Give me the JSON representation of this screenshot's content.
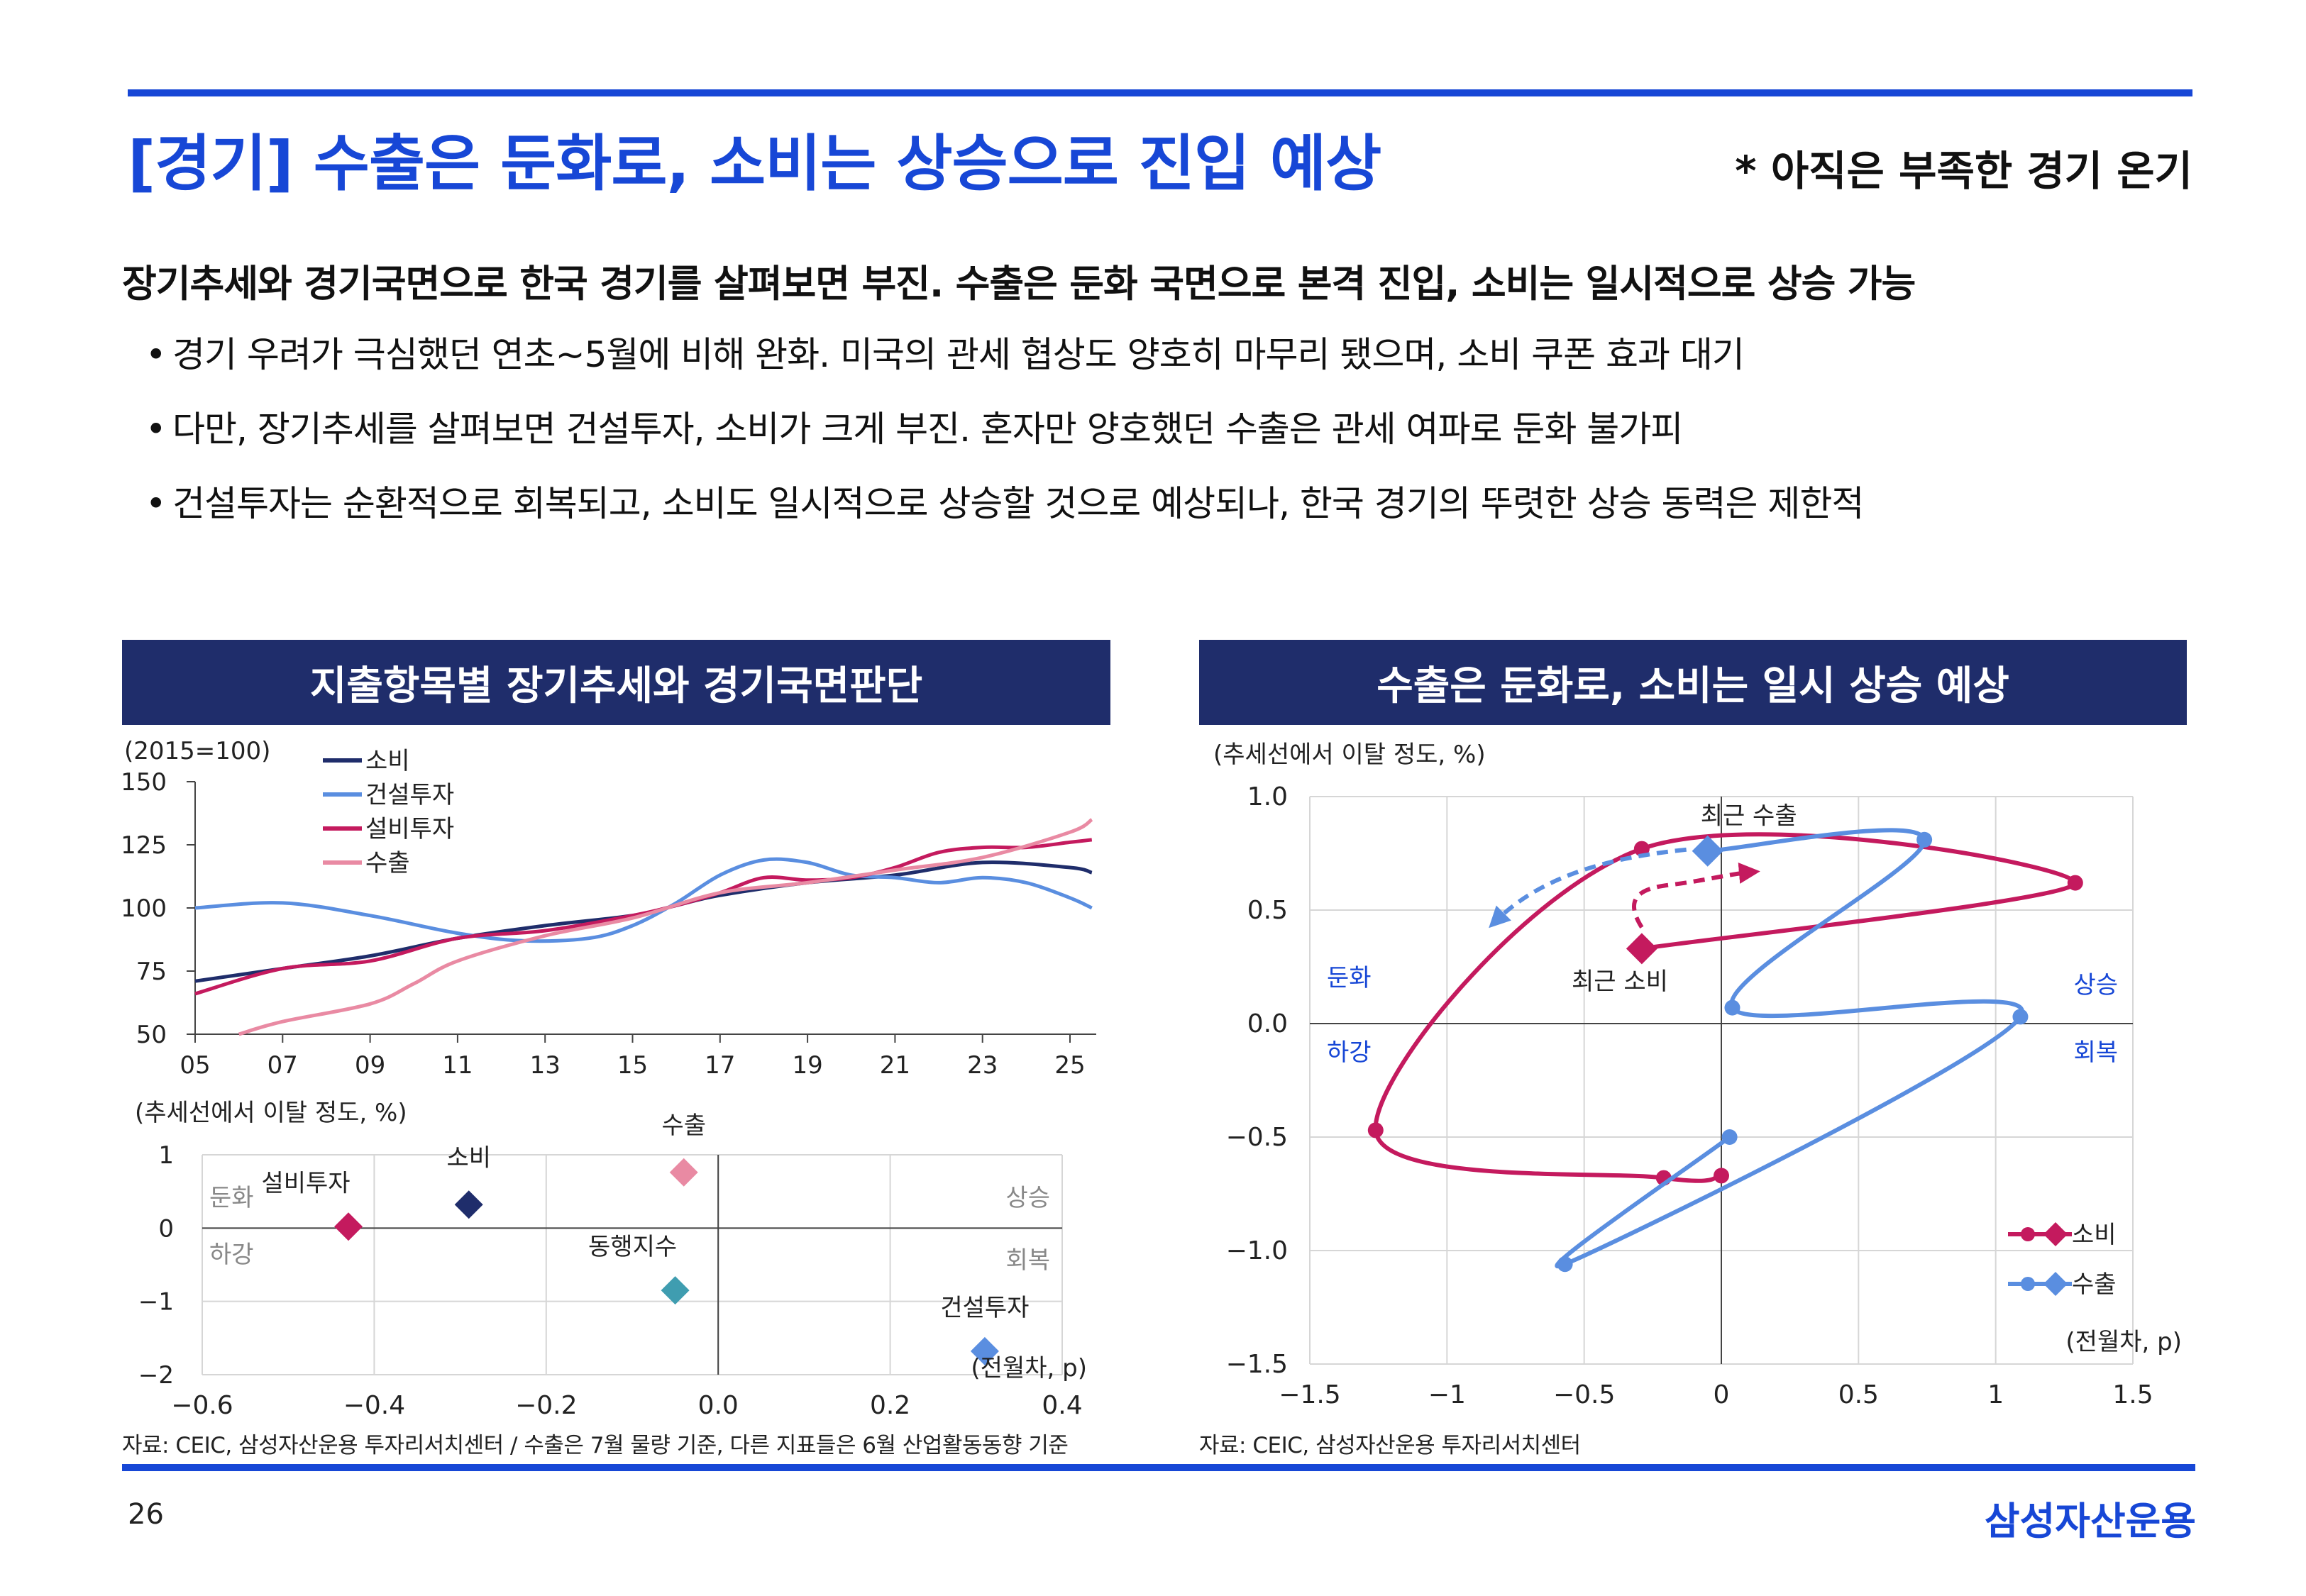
{
  "header": {
    "title": "[경기] 수출은 둔화로, 소비는 상승으로 진입 예상",
    "note": "* 아직은 부족한 경기 온기"
  },
  "lead": "장기추세와 경기국면으로 한국 경기를 살펴보면 부진. 수출은 둔화 국면으로 본격 진입, 소비는 일시적으로 상승 가능",
  "bullets": [
    "경기 우려가 극심했던 연초~5월에 비해 완화. 미국의 관세 협상도 양호히 마무리 됐으며, 소비 쿠폰 효과 대기",
    "다만, 장기추세를 살펴보면 건설투자, 소비가 크게 부진. 혼자만 양호했던 수출은 관세 여파로 둔화 불가피",
    "건설투자는 순환적으로 회복되고, 소비도 일시적으로 상승할 것으로 예상되나, 한국 경기의 뚜렷한 상승 동력은 제한적"
  ],
  "bullet_marker": "•",
  "left_panel": {
    "heading": "지출항목별 장기추세와 경기국면판단",
    "source": "자료: CEIC, 삼성자산운용 투자리서치센터 / 수출은 7월 물량 기준, 다른 지표들은 6월 산업활동동향 기준"
  },
  "right_panel": {
    "heading": "수출은 둔화로, 소비는 일시 상승 예상",
    "source": "자료: CEIC, 삼성자산운용 투자리서치센터"
  },
  "footer": {
    "page": "26",
    "brand": "삼성자산운용"
  },
  "chart_data": [
    {
      "id": "trend",
      "type": "line",
      "title": "",
      "ylabel": "(2015=100)",
      "xlim": [
        2005,
        2025.6
      ],
      "ylim": [
        50,
        150
      ],
      "xticks": [
        2005,
        2007,
        2009,
        2011,
        2013,
        2015,
        2017,
        2019,
        2021,
        2023,
        2025
      ],
      "xtick_labels": [
        "05",
        "07",
        "09",
        "11",
        "13",
        "15",
        "17",
        "19",
        "21",
        "23",
        "25"
      ],
      "yticks": [
        50,
        75,
        100,
        125,
        150
      ],
      "legend_position": "top-left",
      "series": [
        {
          "name": "소비",
          "color": "#1f2d6b",
          "x": [
            2005,
            2007,
            2009,
            2011,
            2013,
            2015,
            2016,
            2017,
            2019,
            2021,
            2023,
            2025,
            2025.5
          ],
          "y": [
            71,
            76,
            81,
            88,
            93,
            97,
            101,
            105,
            110,
            113,
            118,
            116,
            114
          ]
        },
        {
          "name": "건설투자",
          "color": "#5a8ee0",
          "x": [
            2005,
            2007,
            2009,
            2011,
            2012.5,
            2014,
            2015,
            2016,
            2017,
            2018,
            2019,
            2020,
            2021,
            2022,
            2023,
            2024,
            2025,
            2025.5
          ],
          "y": [
            100,
            102,
            97,
            90,
            87,
            88,
            93,
            102,
            113,
            119,
            118,
            113,
            112,
            110,
            112,
            110,
            104,
            100
          ]
        },
        {
          "name": "설비투자",
          "color": "#c41a5e",
          "x": [
            2005,
            2007,
            2009,
            2011,
            2013,
            2015,
            2016,
            2017,
            2018,
            2019,
            2020,
            2021,
            2022,
            2023,
            2024,
            2025,
            2025.5
          ],
          "y": [
            66,
            76,
            79,
            88,
            91,
            97,
            101,
            106,
            112,
            111,
            112,
            116,
            122,
            124,
            124,
            126,
            127
          ]
        },
        {
          "name": "수출",
          "color": "#e98aa3",
          "x": [
            2006,
            2007,
            2009,
            2010,
            2011,
            2013,
            2015,
            2017,
            2019,
            2021,
            2023,
            2025,
            2025.5
          ],
          "y": [
            50,
            55,
            62,
            70,
            79,
            89,
            96,
            106,
            110,
            115,
            120,
            130,
            135
          ]
        }
      ]
    },
    {
      "id": "phase-now",
      "type": "scatter",
      "ylabel": "(추세선에서 이탈 정도, %)",
      "xlabel": "(전월차, p)",
      "xlim": [
        -0.6,
        0.4
      ],
      "ylim": [
        -2,
        1
      ],
      "xticks": [
        -0.6,
        -0.4,
        -0.2,
        0.0,
        0.2,
        0.4
      ],
      "xtick_labels": [
        "−0.6",
        "−0.4",
        "−0.2",
        "0.0",
        "0.2",
        "0.4"
      ],
      "yticks": [
        1,
        0,
        -1,
        -2
      ],
      "ytick_labels": [
        "1",
        "0",
        "−1",
        "−2"
      ],
      "quadrant_labels": {
        "top_left": "둔화",
        "bottom_left": "하강",
        "top_right": "상승",
        "bottom_right": "회복"
      },
      "points": [
        {
          "name": "설비투자",
          "x": -0.43,
          "y": 0.02,
          "color": "#c41a5e"
        },
        {
          "name": "소비",
          "x": -0.29,
          "y": 0.32,
          "color": "#1f2d6b"
        },
        {
          "name": "수출",
          "x": -0.04,
          "y": 0.76,
          "color": "#e98aa3"
        },
        {
          "name": "동행지수",
          "x": -0.05,
          "y": -0.85,
          "color": "#3f9db0"
        },
        {
          "name": "건설투자",
          "x": 0.31,
          "y": -1.68,
          "color": "#5a8ee0"
        }
      ]
    },
    {
      "id": "cycle",
      "type": "line",
      "ylabel": "(추세선에서 이탈 정도, %)",
      "xlabel": "(전월차, p)",
      "xlim": [
        -1.5,
        1.5
      ],
      "ylim": [
        -1.5,
        1.0
      ],
      "xticks": [
        -1.5,
        -1,
        -0.5,
        0,
        0.5,
        1,
        1.5
      ],
      "xtick_labels": [
        "−1.5",
        "−1",
        "−0.5",
        "0",
        "0.5",
        "1",
        "1.5"
      ],
      "yticks": [
        1.0,
        0.5,
        0.0,
        -0.5,
        -1.0,
        -1.5
      ],
      "ytick_labels": [
        "1.0",
        "0.5",
        "0.0",
        "−0.5",
        "−1.0",
        "−1.5"
      ],
      "quadrant_labels": {
        "top_left": "둔화",
        "bottom_left": "하강",
        "top_right": "상승",
        "bottom_right": "회복"
      },
      "annotations": [
        {
          "text": "최근 수출",
          "x": 0.1,
          "y": 0.88
        },
        {
          "text": "최근 소비",
          "x": -0.37,
          "y": 0.15
        }
      ],
      "legend_position": "bottom-right",
      "series": [
        {
          "name": "소비",
          "color": "#c41a5e",
          "points": [
            [
              0.0,
              -0.67
            ],
            [
              -0.21,
              -0.68
            ],
            [
              -1.26,
              -0.47
            ],
            [
              -0.29,
              0.77
            ],
            [
              1.29,
              0.62
            ],
            [
              -0.29,
              0.33
            ]
          ],
          "latest": [
            -0.29,
            0.33
          ]
        },
        {
          "name": "수출",
          "color": "#5a8ee0",
          "points": [
            [
              0.03,
              -0.5
            ],
            [
              -0.57,
              -1.06
            ],
            [
              1.09,
              0.03
            ],
            [
              0.04,
              0.07
            ],
            [
              0.74,
              0.81
            ],
            [
              -0.05,
              0.76
            ]
          ],
          "latest": [
            -0.05,
            0.76
          ]
        }
      ]
    }
  ]
}
